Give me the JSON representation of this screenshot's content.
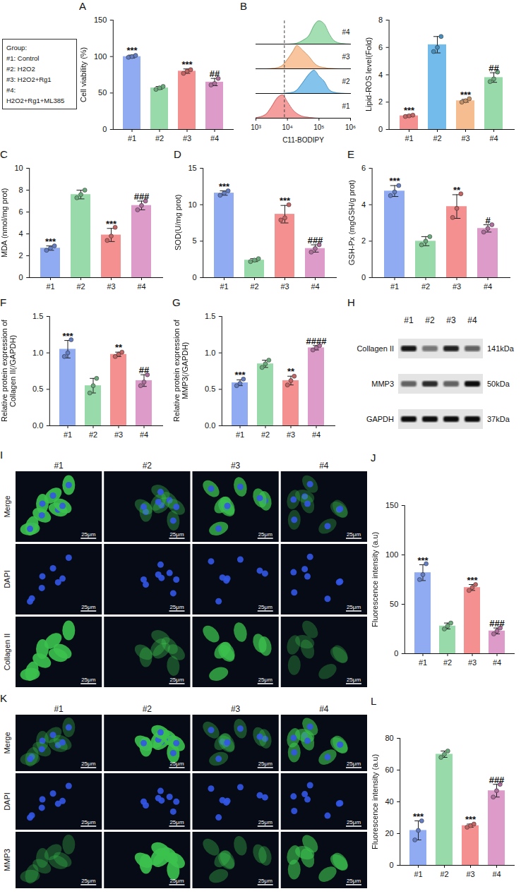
{
  "group_legend": {
    "title": "Group:",
    "items": [
      "#1: Control",
      "#2: H2O2",
      "#3: H2O2+Rg1",
      "#4: H2O2+Rg1+ML385"
    ]
  },
  "chart_data": [
    {
      "type": "bar",
      "panel": "A",
      "ylabel": "Cell viability (%)",
      "categories": [
        "#1",
        "#2",
        "#3",
        "#4"
      ],
      "values": [
        100,
        57,
        80,
        65
      ],
      "error": [
        2,
        2,
        3,
        5
      ],
      "points": [
        [
          99,
          100,
          101.5
        ],
        [
          55,
          57,
          59
        ],
        [
          77,
          80,
          82
        ],
        [
          61,
          63,
          70
        ]
      ],
      "significance": [
        "***",
        null,
        "***",
        "##"
      ],
      "colors": [
        "#7d9cf0",
        "#86d39a",
        "#f27d7d",
        "#d68ac0"
      ],
      "ylim": [
        0,
        150
      ],
      "yticks": [
        0,
        50,
        100,
        150
      ]
    },
    {
      "type": "ridgeline",
      "panel": "B",
      "xlabel": "C11-BODIPY",
      "log": "x",
      "tick_labels": "x",
      "x": [
        1000,
        2000,
        3000,
        5000,
        7000,
        10000,
        15000,
        20000,
        30000,
        50000,
        70000,
        100000,
        150000,
        200000,
        300000,
        500000,
        1000000
      ],
      "series": [
        {
          "name": "#1",
          "color": "#f27d7d",
          "values": [
            0.02,
            0.15,
            0.45,
            0.9,
            1.0,
            0.7,
            0.35,
            0.2,
            0.08,
            0.03,
            0.01,
            0,
            0,
            0,
            0,
            0,
            0
          ]
        },
        {
          "name": "#2",
          "color": "#5aafe6",
          "values": [
            0,
            0,
            0,
            0,
            0,
            0.02,
            0.05,
            0.15,
            0.45,
            0.85,
            1.0,
            0.75,
            0.5,
            0.2,
            0.05,
            0.01,
            0
          ]
        },
        {
          "name": "#3",
          "color": "#f5b27d",
          "values": [
            0,
            0,
            0.01,
            0.05,
            0.15,
            0.4,
            0.75,
            1.0,
            0.8,
            0.5,
            0.25,
            0.1,
            0.05,
            0.02,
            0.01,
            0,
            0
          ]
        },
        {
          "name": "#4",
          "color": "#86d39a",
          "values": [
            0,
            0,
            0,
            0,
            0,
            0,
            0.01,
            0.04,
            0.15,
            0.4,
            0.8,
            1.0,
            0.85,
            0.5,
            0.15,
            0.03,
            0
          ]
        }
      ],
      "threshold": 8000,
      "xlim": [
        1000,
        1000000
      ],
      "xticks": [
        {
          "value": 1000,
          "label": "10³"
        },
        {
          "value": 10000,
          "label": "10⁴"
        },
        {
          "value": 100000,
          "label": "10⁵"
        },
        {
          "value": 1000000,
          "label": "10⁶"
        }
      ],
      "ylim": [
        0,
        1
      ]
    },
    {
      "type": "bar",
      "ylabel": "Lipid-ROS level(Fold)",
      "categories": [
        "#1",
        "#2",
        "#3",
        "#4"
      ],
      "values": [
        1.0,
        6.2,
        2.1,
        3.8
      ],
      "error": [
        0.06,
        0.6,
        0.1,
        0.35
      ],
      "points": [
        [
          0.95,
          1.0,
          1.05
        ],
        [
          5.7,
          6.0,
          6.8
        ],
        [
          2.0,
          2.1,
          2.25
        ],
        [
          3.5,
          3.7,
          4.2
        ]
      ],
      "significance": [
        "***",
        null,
        "***",
        "##"
      ],
      "colors": [
        "#f27d7d",
        "#5aafe6",
        "#f5b27d",
        "#86d39a"
      ],
      "ylim": [
        0,
        8
      ],
      "yticks": [
        0,
        2,
        4,
        6,
        8
      ]
    },
    {
      "type": "bar",
      "panel": "C",
      "ylabel": "MDA (nmol/mg prot)",
      "categories": [
        "#1",
        "#2",
        "#3",
        "#4"
      ],
      "values": [
        2.7,
        7.6,
        3.9,
        6.6
      ],
      "error": [
        0.2,
        0.4,
        0.6,
        0.4
      ],
      "points": [
        [
          2.5,
          2.7,
          2.9
        ],
        [
          7.3,
          7.6,
          8.0
        ],
        [
          3.4,
          3.8,
          4.6
        ],
        [
          6.2,
          6.6,
          7.0
        ]
      ],
      "significance": [
        "***",
        null,
        "***",
        "###"
      ],
      "colors": [
        "#7d9cf0",
        "#86d39a",
        "#f27d7d",
        "#d68ac0"
      ],
      "ylim": [
        0,
        10
      ],
      "yticks": [
        0,
        2,
        4,
        6,
        8,
        10
      ]
    },
    {
      "type": "bar",
      "panel": "D",
      "ylabel": "SOD(U/mg prot)",
      "categories": [
        "#1",
        "#2",
        "#3",
        "#4"
      ],
      "values": [
        11.6,
        2.4,
        8.7,
        4.0
      ],
      "error": [
        0.3,
        0.2,
        1.2,
        0.5
      ],
      "points": [
        [
          11.3,
          11.6,
          11.9
        ],
        [
          2.2,
          2.4,
          2.6
        ],
        [
          7.9,
          8.2,
          10.0
        ],
        [
          3.5,
          4.0,
          4.5
        ]
      ],
      "significance": [
        "***",
        null,
        "***",
        "###"
      ],
      "colors": [
        "#7d9cf0",
        "#86d39a",
        "#f27d7d",
        "#d68ac0"
      ],
      "ylim": [
        0,
        15
      ],
      "yticks": [
        0,
        5,
        10,
        15
      ]
    },
    {
      "type": "bar",
      "panel": "E",
      "ylabel": "GSH-Px (mgGSH/g prot)",
      "categories": [
        "#1",
        "#2",
        "#3",
        "#4"
      ],
      "values": [
        4.75,
        2.0,
        3.9,
        2.7
      ],
      "error": [
        0.3,
        0.25,
        0.65,
        0.2
      ],
      "points": [
        [
          4.5,
          4.7,
          5.05
        ],
        [
          1.8,
          2.0,
          2.25
        ],
        [
          3.3,
          3.8,
          4.6
        ],
        [
          2.5,
          2.7,
          2.9
        ]
      ],
      "significance": [
        "***",
        null,
        "**",
        "#"
      ],
      "colors": [
        "#7d9cf0",
        "#86d39a",
        "#f27d7d",
        "#d68ac0"
      ],
      "ylim": [
        0,
        6
      ],
      "yticks": [
        0,
        2,
        4,
        6
      ]
    },
    {
      "type": "bar",
      "panel": "F",
      "ylabel": "Relative protein expression of Collagen II(/GAPDH)",
      "categories": [
        "#1",
        "#2",
        "#3",
        "#4"
      ],
      "values": [
        1.05,
        0.55,
        0.98,
        0.62
      ],
      "error": [
        0.12,
        0.1,
        0.03,
        0.08
      ],
      "points": [
        [
          0.95,
          1.0,
          1.18
        ],
        [
          0.45,
          0.55,
          0.65
        ],
        [
          0.95,
          0.98,
          1.01
        ],
        [
          0.55,
          0.6,
          0.7
        ]
      ],
      "significance": [
        "***",
        null,
        "**",
        "##"
      ],
      "colors": [
        "#7d9cf0",
        "#86d39a",
        "#f27d7d",
        "#d68ac0"
      ],
      "ylim": [
        0,
        1.5
      ],
      "yticks": [
        {
          "value": 0,
          "label": "0.0"
        },
        0.5,
        {
          "value": 1,
          "label": "1.0"
        },
        1.5
      ]
    },
    {
      "type": "bar",
      "panel": "G",
      "ylabel": "Relative protein expression of MMP3(/GAPDH)",
      "categories": [
        "#1",
        "#2",
        "#3",
        "#4"
      ],
      "values": [
        0.59,
        0.85,
        0.62,
        1.07
      ],
      "error": [
        0.04,
        0.05,
        0.06,
        0.03
      ],
      "points": [
        [
          0.55,
          0.58,
          0.64
        ],
        [
          0.8,
          0.85,
          0.9
        ],
        [
          0.56,
          0.62,
          0.68
        ],
        [
          1.04,
          1.07,
          1.1
        ]
      ],
      "significance": [
        "***",
        null,
        "**",
        "####"
      ],
      "colors": [
        "#7d9cf0",
        "#86d39a",
        "#f27d7d",
        "#d68ac0"
      ],
      "ylim": [
        0,
        1.5
      ],
      "yticks": [
        {
          "value": 0,
          "label": "0.0"
        },
        0.5,
        {
          "value": 1,
          "label": "1.0"
        },
        1.5
      ]
    },
    {
      "type": "bar",
      "panel": "J",
      "ylabel": "Fluorescence intensity (a.u)",
      "categories": [
        "#1",
        "#2",
        "#3",
        "#4"
      ],
      "values": [
        82,
        28,
        67,
        23
      ],
      "error": [
        8,
        3,
        3,
        3
      ],
      "points": [
        [
          75,
          80,
          91
        ],
        [
          25,
          28,
          31
        ],
        [
          64,
          67,
          70
        ],
        [
          20,
          23,
          26
        ]
      ],
      "significance": [
        "***",
        null,
        "***",
        "###"
      ],
      "colors": [
        "#7d9cf0",
        "#86d39a",
        "#f27d7d",
        "#d68ac0"
      ],
      "ylim": [
        0,
        150
      ],
      "yticks": [
        0,
        50,
        100,
        150
      ]
    },
    {
      "type": "bar",
      "panel": "L",
      "ylabel": "Fluorescence intensity (a.u)",
      "categories": [
        "#1",
        "#2",
        "#3",
        "#4"
      ],
      "values": [
        22,
        70,
        25,
        47
      ],
      "error": [
        6,
        2,
        1,
        4
      ],
      "points": [
        [
          16,
          22,
          28
        ],
        [
          68,
          70,
          72
        ],
        [
          24,
          25,
          26
        ],
        [
          43,
          47,
          51
        ]
      ],
      "significance": [
        "***",
        null,
        "***",
        "###"
      ],
      "colors": [
        "#7d9cf0",
        "#86d39a",
        "#f27d7d",
        "#d68ac0"
      ],
      "ylim": [
        0,
        80
      ],
      "yticks": [
        0,
        20,
        40,
        60,
        80
      ]
    }
  ],
  "blot": {
    "panel": "H",
    "lanes": [
      "#1",
      "#2",
      "#3",
      "#4"
    ],
    "rows": [
      {
        "label": "Collagen II",
        "size": "141kDa",
        "intensity": [
          0.95,
          0.5,
          0.9,
          0.6
        ]
      },
      {
        "label": "MMP3",
        "size": "50kDa",
        "intensity": [
          0.6,
          0.85,
          0.6,
          1.0
        ]
      },
      {
        "label": "GAPDH",
        "size": "37kDa",
        "intensity": [
          1.0,
          1.0,
          1.0,
          1.0
        ]
      }
    ]
  },
  "images": [
    {
      "panel": "I",
      "columns": [
        "#1",
        "#2",
        "#3",
        "#4"
      ],
      "rows": [
        "Merge",
        "DAPI",
        "Collagen II"
      ],
      "scale_bar": "25μm"
    },
    {
      "panel": "K",
      "columns": [
        "#1",
        "#2",
        "#3",
        "#4"
      ],
      "rows": [
        "Merge",
        "DAPI",
        "MMP3"
      ],
      "scale_bar": "25μm"
    }
  ]
}
